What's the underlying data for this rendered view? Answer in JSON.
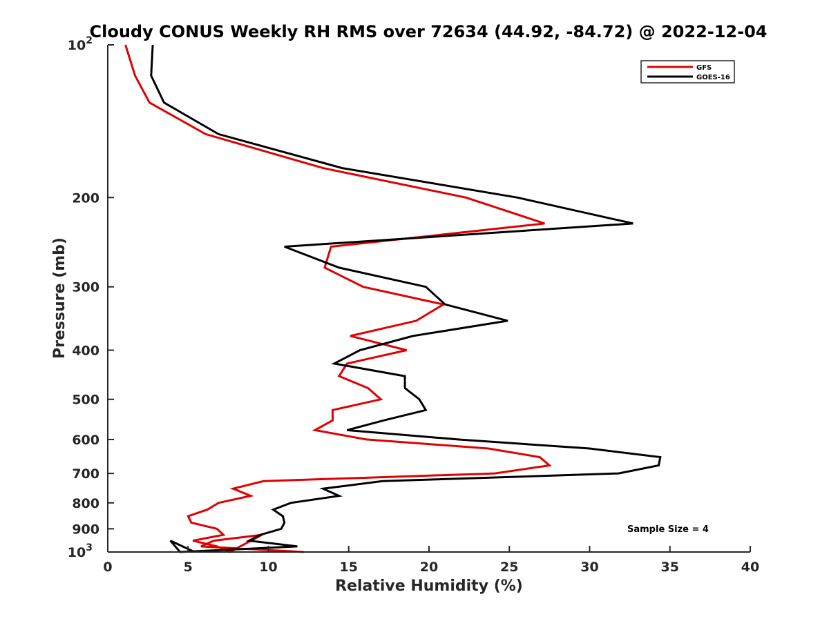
{
  "chart_data": {
    "type": "line",
    "title": "Cloudy CONUS Weekly RH RMS over 72634 (44.92, -84.72) @ 2022-12-04",
    "xlabel": "Relative Humidity (%)",
    "ylabel": "Pressure (mb)",
    "xlim": [
      0,
      40
    ],
    "ylim": [
      100,
      1000
    ],
    "yscale": "log",
    "y_reversed": true,
    "grid": false,
    "legend_position": "top-right",
    "x_ticks": [
      "0",
      "5",
      "10",
      "15",
      "20",
      "25",
      "30",
      "35",
      "40"
    ],
    "y_ticks": [
      {
        "value": 100,
        "base": "10",
        "exp": "2"
      },
      {
        "value": 200,
        "label": "200"
      },
      {
        "value": 300,
        "label": "300"
      },
      {
        "value": 400,
        "label": "400"
      },
      {
        "value": 500,
        "label": "500"
      },
      {
        "value": 600,
        "label": "600"
      },
      {
        "value": 700,
        "label": "700"
      },
      {
        "value": 800,
        "label": "800"
      },
      {
        "value": 900,
        "label": "900"
      },
      {
        "value": 1000,
        "base": "10",
        "exp": "3"
      }
    ],
    "annotation": "Sample Size = 4",
    "series": [
      {
        "name": "GFS",
        "color": "#e00000",
        "points": [
          [
            1.1,
            100
          ],
          [
            1.7,
            115
          ],
          [
            2.6,
            130
          ],
          [
            6.1,
            150
          ],
          [
            13.4,
            175
          ],
          [
            22.3,
            200
          ],
          [
            27.2,
            225
          ],
          [
            13.9,
            250
          ],
          [
            13.5,
            275
          ],
          [
            15.9,
            300
          ],
          [
            20.9,
            325
          ],
          [
            19.2,
            350
          ],
          [
            15.1,
            375
          ],
          [
            18.6,
            400
          ],
          [
            14.9,
            425
          ],
          [
            14.4,
            450
          ],
          [
            16.2,
            475
          ],
          [
            17,
            500
          ],
          [
            14,
            525
          ],
          [
            14,
            550
          ],
          [
            12.9,
            575
          ],
          [
            16.1,
            600
          ],
          [
            23.7,
            625
          ],
          [
            26.9,
            650
          ],
          [
            27.5,
            675
          ],
          [
            24.1,
            700
          ],
          [
            9.7,
            725
          ],
          [
            7.8,
            750
          ],
          [
            8.9,
            775
          ],
          [
            6.9,
            800
          ],
          [
            6.2,
            825
          ],
          [
            5,
            850
          ],
          [
            5.2,
            875
          ],
          [
            6.8,
            900
          ],
          [
            7.2,
            925
          ],
          [
            5.3,
            950
          ],
          [
            6.8,
            975
          ],
          [
            7.6,
            1000
          ],
          [
            9.6,
            925
          ],
          [
            6.6,
            950
          ],
          [
            5.8,
            975
          ],
          [
            12.2,
            1000
          ]
        ]
      },
      {
        "name": "GOES-16",
        "color": "#000000",
        "points": [
          [
            2.8,
            100
          ],
          [
            2.7,
            115
          ],
          [
            3.5,
            130
          ],
          [
            6.9,
            150
          ],
          [
            14.6,
            175
          ],
          [
            25.5,
            200
          ],
          [
            32.7,
            225
          ],
          [
            11,
            250
          ],
          [
            14.4,
            275
          ],
          [
            19.8,
            300
          ],
          [
            21,
            325
          ],
          [
            24.9,
            350
          ],
          [
            19,
            375
          ],
          [
            15.7,
            400
          ],
          [
            14.1,
            425
          ],
          [
            18.5,
            450
          ],
          [
            18.5,
            475
          ],
          [
            19.4,
            500
          ],
          [
            19.8,
            525
          ],
          [
            17.2,
            550
          ],
          [
            14.9,
            575
          ],
          [
            21.8,
            600
          ],
          [
            30,
            625
          ],
          [
            34.4,
            650
          ],
          [
            34.3,
            675
          ],
          [
            31.8,
            700
          ],
          [
            17.1,
            725
          ],
          [
            13.4,
            750
          ],
          [
            14.4,
            775
          ],
          [
            11.4,
            800
          ],
          [
            10.3,
            825
          ],
          [
            10.9,
            850
          ],
          [
            11,
            875
          ],
          [
            10.8,
            900
          ],
          [
            9.5,
            925
          ],
          [
            8.8,
            950
          ],
          [
            11.8,
            975
          ],
          [
            4.5,
            1000
          ],
          [
            3.9,
            950
          ],
          [
            5.4,
            1000
          ]
        ]
      }
    ]
  }
}
